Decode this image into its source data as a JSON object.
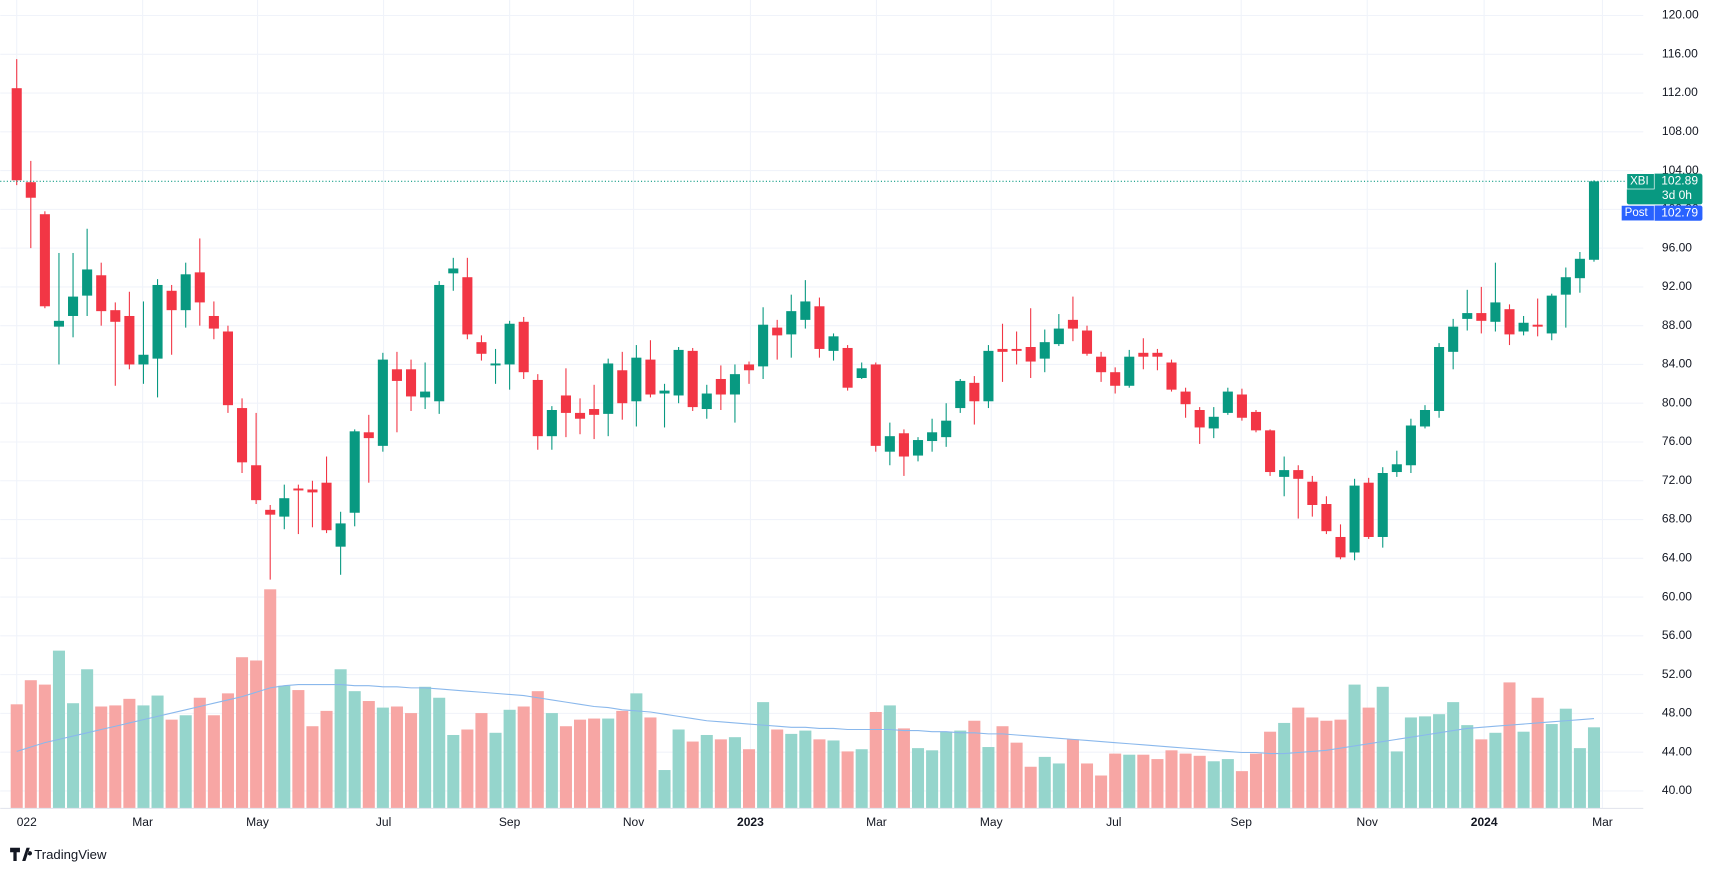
{
  "chart_data": {
    "type": "candlestick",
    "symbol": "XBI",
    "countdown": "3d 0h",
    "post_market": {
      "label": "Post",
      "value": 102.79
    },
    "branding": "TradingView",
    "up_color": "#089981",
    "down_color": "#f23645",
    "volume_up_color": "#95d5cc",
    "volume_down_color": "#f7a6a4",
    "volume_ma_color": "#8ab8ec",
    "post_color": "#2962ff",
    "grid": true,
    "xlim": [
      -1.17,
      115.5
    ],
    "ylim": [
      38.2,
      121.6
    ],
    "volume_ylim": [
      0,
      200
    ],
    "xticks": [
      {
        "value": 0,
        "label": "022"
      },
      {
        "value": 8.94,
        "label": "Mar"
      },
      {
        "value": 17.1,
        "label": "May"
      },
      {
        "value": 26.05,
        "label": "Jul"
      },
      {
        "value": 35.0,
        "label": "Sep"
      },
      {
        "value": 43.8,
        "label": "Nov"
      },
      {
        "value": 52.1,
        "label": "2023"
      },
      {
        "value": 61.05,
        "label": "Mar"
      },
      {
        "value": 69.2,
        "label": "May"
      },
      {
        "value": 77.9,
        "label": "Jul"
      },
      {
        "value": 86.95,
        "label": "Sep"
      },
      {
        "value": 95.9,
        "label": "Nov"
      },
      {
        "value": 104.2,
        "label": "2024"
      },
      {
        "value": 112.6,
        "label": "Mar"
      }
    ],
    "yticks": [
      {
        "value": 40,
        "label": "40.00"
      },
      {
        "value": 44,
        "label": "44.00"
      },
      {
        "value": 48,
        "label": "48.00"
      },
      {
        "value": 52,
        "label": "52.00"
      },
      {
        "value": 56,
        "label": "56.00"
      },
      {
        "value": 60,
        "label": "60.00"
      },
      {
        "value": 64,
        "label": "64.00"
      },
      {
        "value": 68,
        "label": "68.00"
      },
      {
        "value": 72,
        "label": "72.00"
      },
      {
        "value": 76,
        "label": "76.00"
      },
      {
        "value": 80,
        "label": "80.00"
      },
      {
        "value": 84,
        "label": "84.00"
      },
      {
        "value": 88,
        "label": "88.00"
      },
      {
        "value": 92,
        "label": "92.00"
      },
      {
        "value": 96,
        "label": "96.00"
      },
      {
        "value": 100,
        "label": "100.00"
      },
      {
        "value": 104,
        "label": "104.00"
      },
      {
        "value": 108,
        "label": "108.00"
      },
      {
        "value": 112,
        "label": "112.00"
      },
      {
        "value": 116,
        "label": "116.00"
      },
      {
        "value": 120,
        "label": "120.00"
      }
    ],
    "open": [
      112.5,
      102.8,
      99.5,
      87.9,
      89.0,
      91.1,
      93.2,
      89.6,
      89.0,
      84.0,
      84.6,
      91.6,
      89.6,
      93.5,
      89.0,
      87.4,
      79.5,
      73.6,
      69.0,
      68.3,
      71.2,
      71.1,
      71.8,
      65.2,
      68.7,
      77.0,
      75.6,
      83.5,
      83.5,
      80.6,
      80.2,
      93.4,
      93.0,
      86.3,
      83.9,
      84.0,
      88.4,
      82.4,
      76.6,
      80.8,
      79.0,
      79.4,
      78.9,
      83.4,
      80.2,
      84.5,
      81.0,
      80.8,
      85.4,
      79.4,
      82.5,
      80.9,
      84.0,
      83.8,
      87.8,
      87.1,
      88.6,
      90.0,
      85.4,
      85.7,
      82.6,
      84.0,
      75.0,
      76.9,
      74.6,
      76.1,
      76.5,
      79.5,
      82.1,
      80.2,
      85.6,
      85.6,
      85.8,
      84.6,
      86.1,
      88.6,
      87.5,
      84.8,
      83.2,
      81.8,
      85.2,
      85.2,
      84.2,
      81.2,
      79.3,
      77.4,
      79.0,
      80.9,
      79.1,
      77.2,
      72.4,
      73.1,
      71.9,
      69.6,
      66.2,
      64.6,
      71.8,
      66.2,
      72.9,
      73.6,
      77.6,
      79.2,
      85.3,
      88.7,
      89.3,
      88.4,
      89.7,
      87.4,
      88.1,
      87.2,
      91.2,
      92.9,
      94.8
    ],
    "high": [
      115.5,
      105.0,
      99.8,
      95.5,
      95.5,
      98.0,
      94.5,
      90.4,
      91.5,
      90.5,
      92.8,
      92.2,
      94.5,
      97.0,
      90.5,
      88.0,
      80.5,
      79.0,
      69.5,
      71.6,
      71.6,
      72.0,
      74.5,
      68.8,
      77.3,
      78.8,
      85.2,
      85.3,
      84.5,
      84.2,
      92.6,
      95.0,
      95.0,
      87.0,
      85.6,
      88.5,
      88.9,
      83.0,
      79.7,
      83.6,
      80.5,
      81.9,
      84.6,
      85.3,
      86.0,
      86.5,
      82.0,
      85.8,
      85.7,
      81.9,
      83.9,
      84.0,
      84.3,
      89.9,
      88.6,
      91.2,
      92.7,
      90.9,
      87.2,
      86.0,
      84.2,
      84.2,
      78.0,
      77.3,
      76.5,
      78.4,
      80.0,
      82.5,
      82.8,
      86.0,
      88.2,
      87.4,
      89.8,
      87.6,
      89.2,
      91.0,
      88.0,
      85.3,
      83.7,
      85.5,
      86.7,
      85.6,
      84.5,
      81.6,
      79.6,
      79.6,
      81.6,
      81.5,
      79.3,
      77.3,
      74.5,
      73.6,
      72.5,
      70.4,
      67.5,
      72.2,
      72.3,
      73.4,
      75.1,
      78.4,
      79.8,
      86.2,
      88.7,
      91.7,
      92.0,
      94.5,
      90.2,
      89.0,
      90.8,
      91.3,
      94.0,
      95.6,
      103.0
    ],
    "low": [
      102.5,
      96.0,
      89.8,
      84.0,
      86.8,
      89.0,
      88.0,
      81.8,
      83.5,
      82.0,
      80.6,
      85.0,
      87.8,
      88.0,
      86.6,
      79.0,
      72.8,
      69.6,
      61.8,
      67.0,
      66.5,
      67.2,
      66.6,
      62.3,
      67.3,
      71.8,
      75.0,
      77.0,
      79.2,
      79.4,
      78.9,
      91.6,
      86.6,
      84.4,
      82.0,
      81.4,
      82.5,
      75.2,
      75.2,
      76.5,
      76.8,
      76.3,
      76.6,
      78.3,
      77.6,
      80.6,
      77.5,
      80.0,
      79.2,
      78.4,
      79.3,
      78.0,
      82.0,
      82.5,
      84.5,
      84.7,
      87.7,
      84.7,
      84.4,
      81.3,
      82.5,
      75.0,
      73.6,
      72.5,
      74.0,
      75.0,
      75.5,
      79.0,
      77.8,
      79.5,
      82.2,
      84.0,
      82.6,
      83.2,
      85.9,
      86.4,
      84.9,
      82.2,
      81.0,
      81.6,
      83.5,
      83.4,
      81.2,
      78.5,
      75.8,
      76.4,
      78.8,
      78.2,
      77.0,
      72.5,
      70.4,
      68.1,
      68.3,
      66.5,
      63.9,
      63.8,
      66.0,
      65.1,
      72.4,
      72.8,
      77.4,
      78.5,
      83.5,
      87.5,
      87.2,
      87.4,
      86.0,
      87.0,
      86.9,
      86.5,
      87.8,
      91.4,
      94.6
    ],
    "close": [
      103.0,
      101.2,
      90.0,
      88.5,
      91.0,
      93.8,
      89.5,
      88.4,
      84.0,
      85.0,
      92.2,
      89.6,
      93.3,
      90.4,
      87.7,
      79.8,
      73.9,
      70.0,
      68.5,
      70.2,
      71.0,
      70.8,
      66.9,
      67.6,
      77.1,
      76.4,
      84.5,
      82.3,
      80.7,
      81.2,
      92.2,
      93.9,
      87.1,
      85.1,
      84.1,
      88.2,
      83.2,
      76.6,
      79.3,
      79.0,
      78.4,
      78.8,
      84.1,
      80.0,
      84.7,
      80.9,
      81.3,
      85.5,
      79.6,
      81.0,
      80.9,
      83.0,
      83.4,
      88.1,
      87.0,
      89.5,
      90.5,
      85.6,
      86.9,
      81.6,
      83.6,
      75.6,
      76.6,
      74.5,
      76.2,
      77.0,
      78.2,
      82.3,
      80.2,
      85.4,
      85.3,
      85.4,
      84.3,
      86.3,
      87.7,
      87.7,
      85.1,
      83.2,
      81.8,
      84.8,
      84.8,
      84.8,
      81.4,
      79.9,
      77.5,
      78.6,
      81.2,
      78.5,
      77.2,
      72.9,
      73.1,
      72.2,
      69.5,
      66.8,
      64.1,
      71.5,
      66.2,
      72.8,
      73.7,
      77.7,
      79.3,
      85.8,
      87.9,
      89.3,
      88.5,
      90.4,
      87.1,
      88.3,
      87.9,
      91.1,
      93.0,
      94.9,
      102.89
    ],
    "volume": [
      95,
      117,
      113,
      144,
      96,
      127,
      93,
      94,
      100,
      94,
      103,
      81,
      85,
      101,
      85,
      105,
      138,
      135,
      200,
      112,
      108,
      75,
      89,
      127,
      107,
      98,
      92,
      93,
      87,
      111,
      101,
      67,
      72,
      87,
      69,
      90,
      93,
      107,
      87,
      75,
      81,
      82,
      82,
      89,
      105,
      83,
      35,
      72,
      61,
      67,
      63,
      65,
      54,
      97,
      72,
      68,
      71,
      63,
      62,
      52,
      54,
      88,
      94,
      73,
      55,
      53,
      70,
      71,
      80,
      56,
      75,
      60,
      38,
      47,
      41,
      63,
      41,
      30,
      50,
      49,
      49,
      45,
      53,
      50,
      48,
      43,
      45,
      34,
      50,
      70,
      78,
      92,
      83,
      80,
      81,
      113,
      92,
      111,
      52,
      83,
      84,
      86,
      97,
      76,
      63,
      69,
      115,
      70,
      101,
      77,
      91,
      55,
      74
    ],
    "volume_ma": [
      52,
      56,
      60,
      63,
      66,
      69,
      72,
      75,
      78,
      81,
      84,
      87,
      90,
      93,
      96,
      99,
      102,
      106,
      110,
      112,
      113,
      113,
      113,
      113,
      112,
      112,
      111,
      111,
      110,
      110,
      109,
      108,
      107,
      106,
      105,
      104,
      103,
      101,
      99,
      97,
      95,
      93,
      92,
      90,
      89,
      88,
      86,
      84,
      82,
      80,
      79,
      78,
      77,
      76,
      75,
      74,
      74,
      73,
      73,
      72,
      72,
      72,
      72,
      71,
      71,
      70,
      70,
      69,
      69,
      68,
      68,
      67,
      66,
      65,
      64,
      63,
      62,
      61,
      60,
      59,
      58,
      57,
      56,
      55,
      54,
      53,
      52,
      51,
      51,
      50,
      50,
      51,
      52,
      53,
      55,
      57,
      59,
      61,
      63,
      65,
      67,
      69,
      71,
      73,
      74,
      75,
      76,
      77,
      78,
      79,
      80,
      81,
      82
    ]
  }
}
